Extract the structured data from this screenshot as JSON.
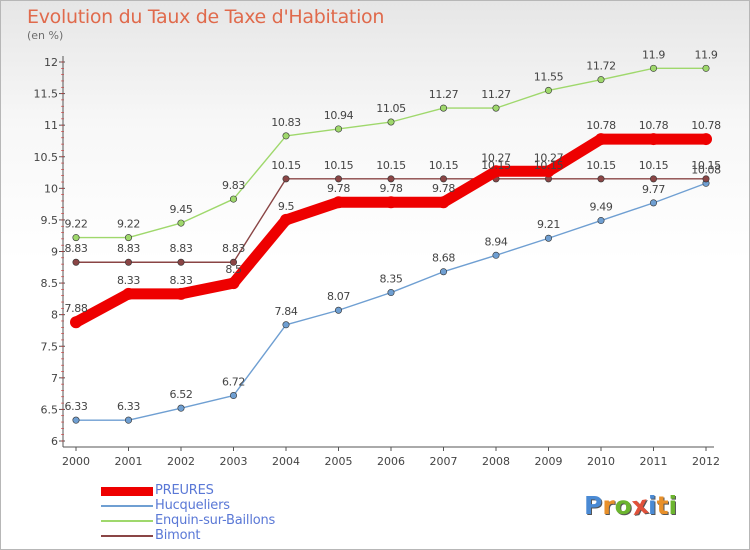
{
  "title": "Evolution du Taux de Taxe d'Habitation",
  "unit": "(en %)",
  "logo": {
    "text": "Proxiti",
    "letter_colors": [
      "#4a8ad4",
      "#e8902a",
      "#6cb52f",
      "#e0513a",
      "#4a8ad4",
      "#e8902a",
      "#6cb52f"
    ]
  },
  "chart_data": {
    "type": "line",
    "x": [
      "2000",
      "2001",
      "2002",
      "2003",
      "2004",
      "2005",
      "2006",
      "2007",
      "2008",
      "2009",
      "2010",
      "2011",
      "2012"
    ],
    "ylim": [
      6,
      12
    ],
    "yticks": [
      "6",
      "6.5",
      "7",
      "7.5",
      "8",
      "8.5",
      "9",
      "9.5",
      "10",
      "10.5",
      "11",
      "11.5",
      "12"
    ],
    "grid": false,
    "legend_position": "bottom-left",
    "series": [
      {
        "name": "PREURES",
        "color": "#ee0000",
        "values": [
          7.88,
          8.33,
          8.33,
          8.5,
          9.5,
          9.78,
          9.78,
          9.78,
          10.27,
          10.27,
          10.78,
          10.78,
          10.78
        ],
        "labels": [
          "7.88",
          "8.33",
          "8.33",
          "8.5",
          "9.5",
          "9.78",
          "9.78",
          "9.78",
          "10.27",
          "10.27",
          "10.78",
          "10.78",
          "10.78"
        ]
      },
      {
        "name": "Hucqueliers",
        "color": "#6f9fd2",
        "values": [
          6.33,
          6.33,
          6.52,
          6.72,
          7.84,
          8.07,
          8.35,
          8.68,
          8.94,
          9.21,
          9.49,
          9.77,
          10.08
        ],
        "labels": [
          "6.33",
          "6.33",
          "6.52",
          "6.72",
          "7.84",
          "8.07",
          "8.35",
          "8.68",
          "8.94",
          "9.21",
          "9.49",
          "9.77",
          "10.08"
        ]
      },
      {
        "name": "Enquin-sur-Baillons",
        "color": "#9fd86c",
        "values": [
          9.22,
          9.22,
          9.45,
          9.83,
          10.83,
          10.94,
          11.05,
          11.27,
          11.27,
          11.55,
          11.72,
          11.9,
          11.9
        ],
        "labels": [
          "9.22",
          "9.22",
          "9.45",
          "9.83",
          "10.83",
          "10.94",
          "11.05",
          "11.27",
          "11.27",
          "11.55",
          "11.72",
          "11.9",
          "11.9"
        ]
      },
      {
        "name": "Bimont",
        "color": "#8a4545",
        "values": [
          8.83,
          8.83,
          8.83,
          8.83,
          10.15,
          10.15,
          10.15,
          10.15,
          10.15,
          10.15,
          10.15,
          10.15,
          10.15
        ],
        "labels": [
          "8.83",
          "8.83",
          "8.83",
          "8.83",
          "10.15",
          "10.15",
          "10.15",
          "10.15",
          "10.15",
          "10.15",
          "10.15",
          "10.15",
          "10.15"
        ]
      }
    ]
  }
}
